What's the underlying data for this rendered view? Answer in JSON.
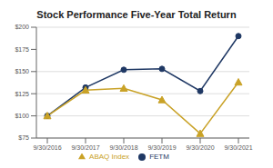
{
  "chart_data": {
    "type": "line",
    "title": "Stock Performance Five-Year Total Return",
    "categories": [
      "9/30/2016",
      "9/30/2017",
      "9/30/2018",
      "9/30/2019",
      "9/30/2020",
      "9/30/2021"
    ],
    "series": [
      {
        "name": "FETM",
        "color": "#1f3864",
        "values": [
          100,
          132,
          152,
          153,
          128,
          190
        ],
        "marker": "circle"
      },
      {
        "name": "ABAQ Index",
        "color": "#c9a227",
        "values": [
          100,
          129,
          131,
          118,
          80,
          138
        ],
        "marker": "triangle"
      }
    ],
    "ylim": [
      75,
      200
    ],
    "yticks": [
      {
        "value": 75,
        "label": "$75"
      },
      {
        "value": 100,
        "label": "$100"
      },
      {
        "value": 125,
        "label": "$125"
      },
      {
        "value": 150,
        "label": "$150"
      },
      {
        "value": 175,
        "label": "$175"
      },
      {
        "value": 200,
        "label": "$200"
      }
    ],
    "grid": true,
    "legend": "bottom"
  }
}
